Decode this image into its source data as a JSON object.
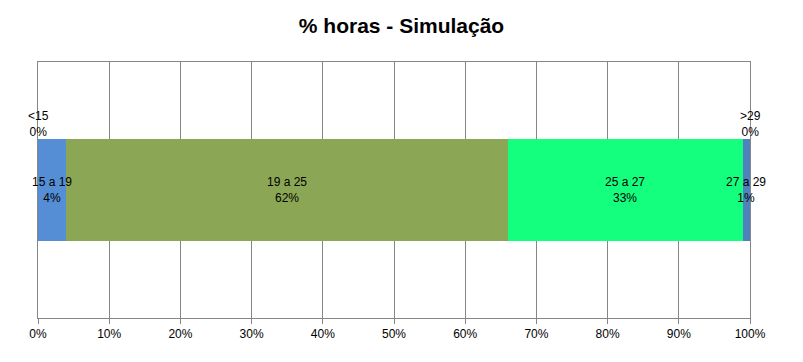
{
  "chart_data": {
    "type": "bar",
    "title": "% horas - Simulação",
    "orientation": "horizontal",
    "stacked": true,
    "grid": true,
    "data_labels": true,
    "tick_labels": "x",
    "categories": [
      null
    ],
    "series": [
      {
        "name": "<15",
        "color": "#1f497d",
        "values": [
          0
        ],
        "value_labels": [
          "0%"
        ]
      },
      {
        "name": "15 a 19",
        "color": "#558ed5",
        "values": [
          4
        ],
        "value_labels": [
          "4%"
        ]
      },
      {
        "name": "19 a 25",
        "color": "#8ba755",
        "values": [
          62
        ],
        "value_labels": [
          "62%"
        ]
      },
      {
        "name": "25 a 27",
        "color": "#14ff7e",
        "values": [
          33
        ],
        "value_labels": [
          "33%"
        ]
      },
      {
        "name": "27 a 29",
        "color": "#4f81bd",
        "values": [
          1
        ],
        "value_labels": [
          "1%"
        ]
      },
      {
        "name": ">29",
        "color": "#c0504d",
        "values": [
          0
        ],
        "value_labels": [
          "0%"
        ]
      }
    ],
    "xlim": [
      0,
      100
    ],
    "xticks": [
      {
        "value": 0,
        "label": "0%"
      },
      {
        "value": 10,
        "label": "10%"
      },
      {
        "value": 20,
        "label": "20%"
      },
      {
        "value": 30,
        "label": "30%"
      },
      {
        "value": 40,
        "label": "40%"
      },
      {
        "value": 50,
        "label": "50%"
      },
      {
        "value": 60,
        "label": "60%"
      },
      {
        "value": 70,
        "label": "70%"
      },
      {
        "value": 80,
        "label": "80%"
      },
      {
        "value": 90,
        "label": "90%"
      },
      {
        "value": 100,
        "label": "100%"
      }
    ]
  }
}
